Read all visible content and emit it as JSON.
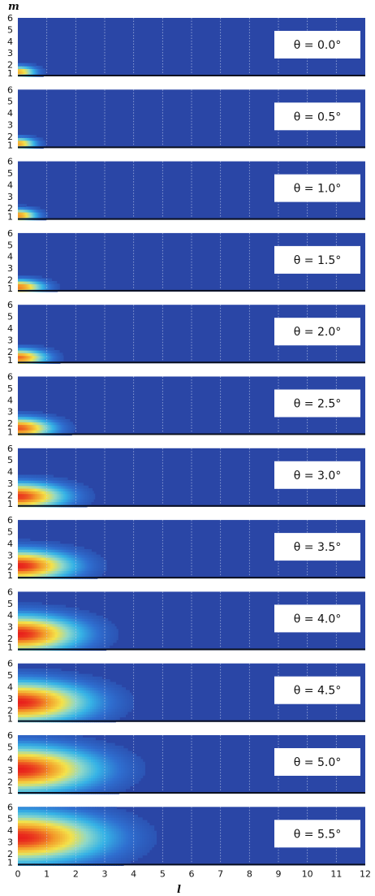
{
  "chart_data": {
    "type": "heatmap",
    "ylabel": "m",
    "xlabel": "l",
    "x_ticks": [
      "0",
      "1",
      "2",
      "3",
      "4",
      "5",
      "6",
      "7",
      "8",
      "9",
      "10",
      "11",
      "12"
    ],
    "y_ticks": [
      "1",
      "2",
      "3",
      "4",
      "5",
      "6"
    ],
    "xlim": [
      0,
      12
    ],
    "ylim": [
      1,
      6
    ],
    "grid": "vertical dotted lines at integer l",
    "colors": {
      "background": "#2a46a6",
      "ramp": [
        "#2a46a6",
        "#2f6fd0",
        "#36b3e6",
        "#8fd8c8",
        "#f4e24a",
        "#f39a2a",
        "#e8201c"
      ]
    },
    "panels": [
      {
        "label": "θ = 0.0°",
        "theta": 0.0,
        "reach_l": 0.75,
        "m_peak": 1.3,
        "m_spread": 0.55,
        "peak_intensity": 0.8
      },
      {
        "label": "θ = 0.5°",
        "theta": 0.5,
        "reach_l": 0.75,
        "m_peak": 1.3,
        "m_spread": 0.55,
        "peak_intensity": 0.82
      },
      {
        "label": "θ = 1.0°",
        "theta": 1.0,
        "reach_l": 0.8,
        "m_peak": 1.3,
        "m_spread": 0.6,
        "peak_intensity": 0.85
      },
      {
        "label": "θ = 1.5°",
        "theta": 1.5,
        "reach_l": 1.1,
        "m_peak": 1.3,
        "m_spread": 0.7,
        "peak_intensity": 0.88
      },
      {
        "label": "θ = 2.0°",
        "theta": 2.0,
        "reach_l": 1.2,
        "m_peak": 1.4,
        "m_spread": 0.8,
        "peak_intensity": 0.9
      },
      {
        "label": "θ = 2.5°",
        "theta": 2.5,
        "reach_l": 1.5,
        "m_peak": 1.5,
        "m_spread": 1.0,
        "peak_intensity": 0.93
      },
      {
        "label": "θ = 3.0°",
        "theta": 3.0,
        "reach_l": 2.0,
        "m_peak": 1.8,
        "m_spread": 1.3,
        "peak_intensity": 0.97
      },
      {
        "label": "θ = 3.5°",
        "theta": 3.5,
        "reach_l": 2.3,
        "m_peak": 2.0,
        "m_spread": 1.5,
        "peak_intensity": 1.0
      },
      {
        "label": "θ = 4.0°",
        "theta": 4.0,
        "reach_l": 2.6,
        "m_peak": 2.3,
        "m_spread": 1.8,
        "peak_intensity": 1.0
      },
      {
        "label": "θ = 4.5°",
        "theta": 4.5,
        "reach_l": 3.0,
        "m_peak": 2.6,
        "m_spread": 2.0,
        "peak_intensity": 1.0
      },
      {
        "label": "θ = 5.0°",
        "theta": 5.0,
        "reach_l": 3.3,
        "m_peak": 3.0,
        "m_spread": 2.2,
        "peak_intensity": 1.0
      },
      {
        "label": "θ = 5.5°",
        "theta": 5.5,
        "reach_l": 3.6,
        "m_peak": 3.3,
        "m_spread": 2.4,
        "peak_intensity": 1.0
      }
    ]
  }
}
